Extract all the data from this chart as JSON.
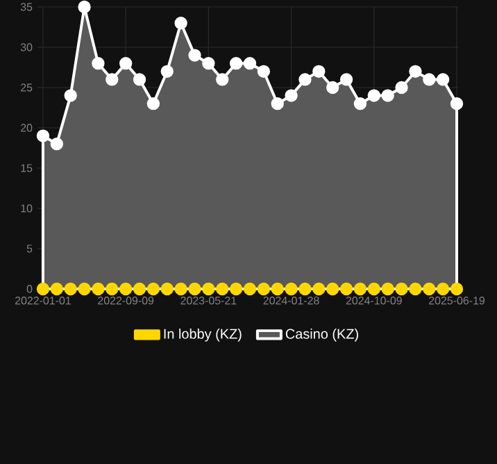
{
  "chart_data": {
    "type": "area",
    "categories": [
      "2022-01-01",
      null,
      null,
      null,
      null,
      null,
      "2022-09-09",
      null,
      null,
      null,
      null,
      null,
      "2023-05-21",
      null,
      null,
      null,
      null,
      null,
      "2024-01-28",
      null,
      null,
      null,
      null,
      null,
      "2024-10-09",
      null,
      null,
      null,
      null,
      null,
      "2025-06-19"
    ],
    "series": [
      {
        "name": "In lobby (KZ)",
        "color": "#ffd700",
        "type": "scatter",
        "values": [
          0,
          0,
          0,
          0,
          0,
          0,
          0,
          0,
          0,
          0,
          0,
          0,
          0,
          0,
          0,
          0,
          0,
          0,
          0,
          0,
          0,
          0,
          0,
          0,
          0,
          0,
          0,
          0,
          0,
          0,
          0
        ]
      },
      {
        "name": "Casino (KZ)",
        "color": "#ffffff",
        "values": [
          19,
          18,
          24,
          35,
          28,
          26,
          28,
          26,
          23,
          27,
          33,
          29,
          28,
          26,
          28,
          28,
          27,
          23,
          24,
          26,
          27,
          25,
          26,
          23,
          24,
          24,
          25,
          27,
          26,
          26,
          23
        ]
      }
    ],
    "ylim": [
      0,
      35
    ],
    "yticks": [
      0,
      5,
      10,
      15,
      20,
      25,
      30,
      35
    ],
    "grid": true,
    "legend": "bottom",
    "marker": "circle"
  }
}
